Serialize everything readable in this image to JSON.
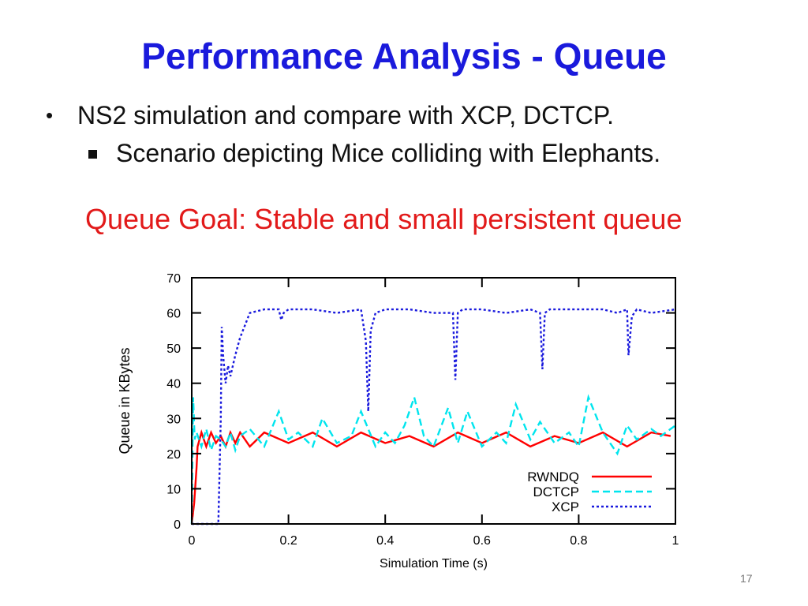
{
  "slide": {
    "title": "Performance Analysis - Queue",
    "bullet": "NS2 simulation and compare with XCP, DCTCP.",
    "sub_bullet": "Scenario depicting Mice colliding with Elephants.",
    "goal": "Queue Goal: Stable and small persistent queue",
    "page_number": "17",
    "colors": {
      "title": "#1a1adc",
      "goal": "#e21a1a"
    }
  },
  "chart_data": {
    "type": "line",
    "title": "",
    "xlabel": "Simulation Time (s)",
    "ylabel": "Queue in KBytes",
    "xlim": [
      0,
      1
    ],
    "ylim": [
      0,
      70
    ],
    "xticks": [
      0,
      0.2,
      0.4,
      0.6,
      0.8,
      1
    ],
    "xtick_labels": [
      "0",
      "0.2",
      "0.4",
      "0.6",
      "0.8",
      "1"
    ],
    "yticks": [
      0,
      10,
      20,
      30,
      40,
      50,
      60,
      70
    ],
    "ytick_labels": [
      "0",
      "10",
      "20",
      "30",
      "40",
      "50",
      "60",
      "70"
    ],
    "grid": false,
    "legend": "bottom-right",
    "series": [
      {
        "name": "RWNDQ",
        "color": "#ff0000",
        "dash": "solid",
        "x": [
          0,
          0.005,
          0.01,
          0.012,
          0.02,
          0.03,
          0.04,
          0.05,
          0.06,
          0.07,
          0.08,
          0.09,
          0.1,
          0.12,
          0.15,
          0.2,
          0.25,
          0.3,
          0.35,
          0.4,
          0.45,
          0.5,
          0.55,
          0.6,
          0.65,
          0.7,
          0.75,
          0.8,
          0.85,
          0.9,
          0.95,
          0.99
        ],
        "values": [
          0,
          6,
          16,
          22,
          26,
          22,
          26,
          23,
          25,
          22,
          26,
          23,
          26,
          22,
          26,
          23,
          26,
          22,
          26,
          23,
          25,
          22,
          26,
          23,
          26,
          22,
          25,
          23,
          26,
          22,
          26,
          25
        ]
      },
      {
        "name": "DCTCP",
        "color": "#00e5ee",
        "dash": "dashed",
        "x": [
          0,
          0.003,
          0.006,
          0.01,
          0.02,
          0.03,
          0.04,
          0.05,
          0.06,
          0.07,
          0.08,
          0.09,
          0.1,
          0.12,
          0.15,
          0.18,
          0.2,
          0.22,
          0.25,
          0.27,
          0.3,
          0.33,
          0.35,
          0.38,
          0.4,
          0.42,
          0.44,
          0.46,
          0.48,
          0.5,
          0.53,
          0.55,
          0.57,
          0.6,
          0.63,
          0.65,
          0.67,
          0.7,
          0.72,
          0.75,
          0.78,
          0.8,
          0.82,
          0.85,
          0.88,
          0.9,
          0.92,
          0.95,
          0.97,
          1.0
        ],
        "values": [
          0,
          36,
          24,
          26,
          22,
          27,
          21,
          25,
          24,
          22,
          26,
          21,
          25,
          27,
          22,
          32,
          24,
          26,
          22,
          30,
          23,
          25,
          32,
          22,
          26,
          23,
          28,
          36,
          25,
          22,
          33,
          23,
          32,
          22,
          26,
          23,
          34,
          24,
          29,
          23,
          26,
          22,
          36,
          26,
          20,
          28,
          24,
          27,
          25,
          28
        ]
      },
      {
        "name": "XCP",
        "color": "#1a1add",
        "dash": "dotted",
        "x": [
          0,
          0.055,
          0.06,
          0.062,
          0.065,
          0.07,
          0.075,
          0.08,
          0.09,
          0.1,
          0.12,
          0.15,
          0.18,
          0.185,
          0.19,
          0.2,
          0.25,
          0.3,
          0.35,
          0.36,
          0.365,
          0.37,
          0.38,
          0.4,
          0.45,
          0.5,
          0.54,
          0.545,
          0.55,
          0.56,
          0.6,
          0.65,
          0.7,
          0.72,
          0.725,
          0.73,
          0.74,
          0.8,
          0.85,
          0.88,
          0.9,
          0.903,
          0.91,
          0.92,
          0.95,
          1.0
        ],
        "values": [
          0,
          0,
          30,
          56,
          48,
          40,
          45,
          42,
          48,
          53,
          60,
          61,
          61,
          58,
          60,
          61,
          61,
          60,
          61,
          52,
          32,
          55,
          60,
          61,
          61,
          60,
          60,
          41,
          60,
          61,
          61,
          60,
          61,
          60,
          44,
          60,
          61,
          61,
          61,
          60,
          61,
          48,
          59,
          61,
          60,
          61
        ]
      }
    ]
  }
}
